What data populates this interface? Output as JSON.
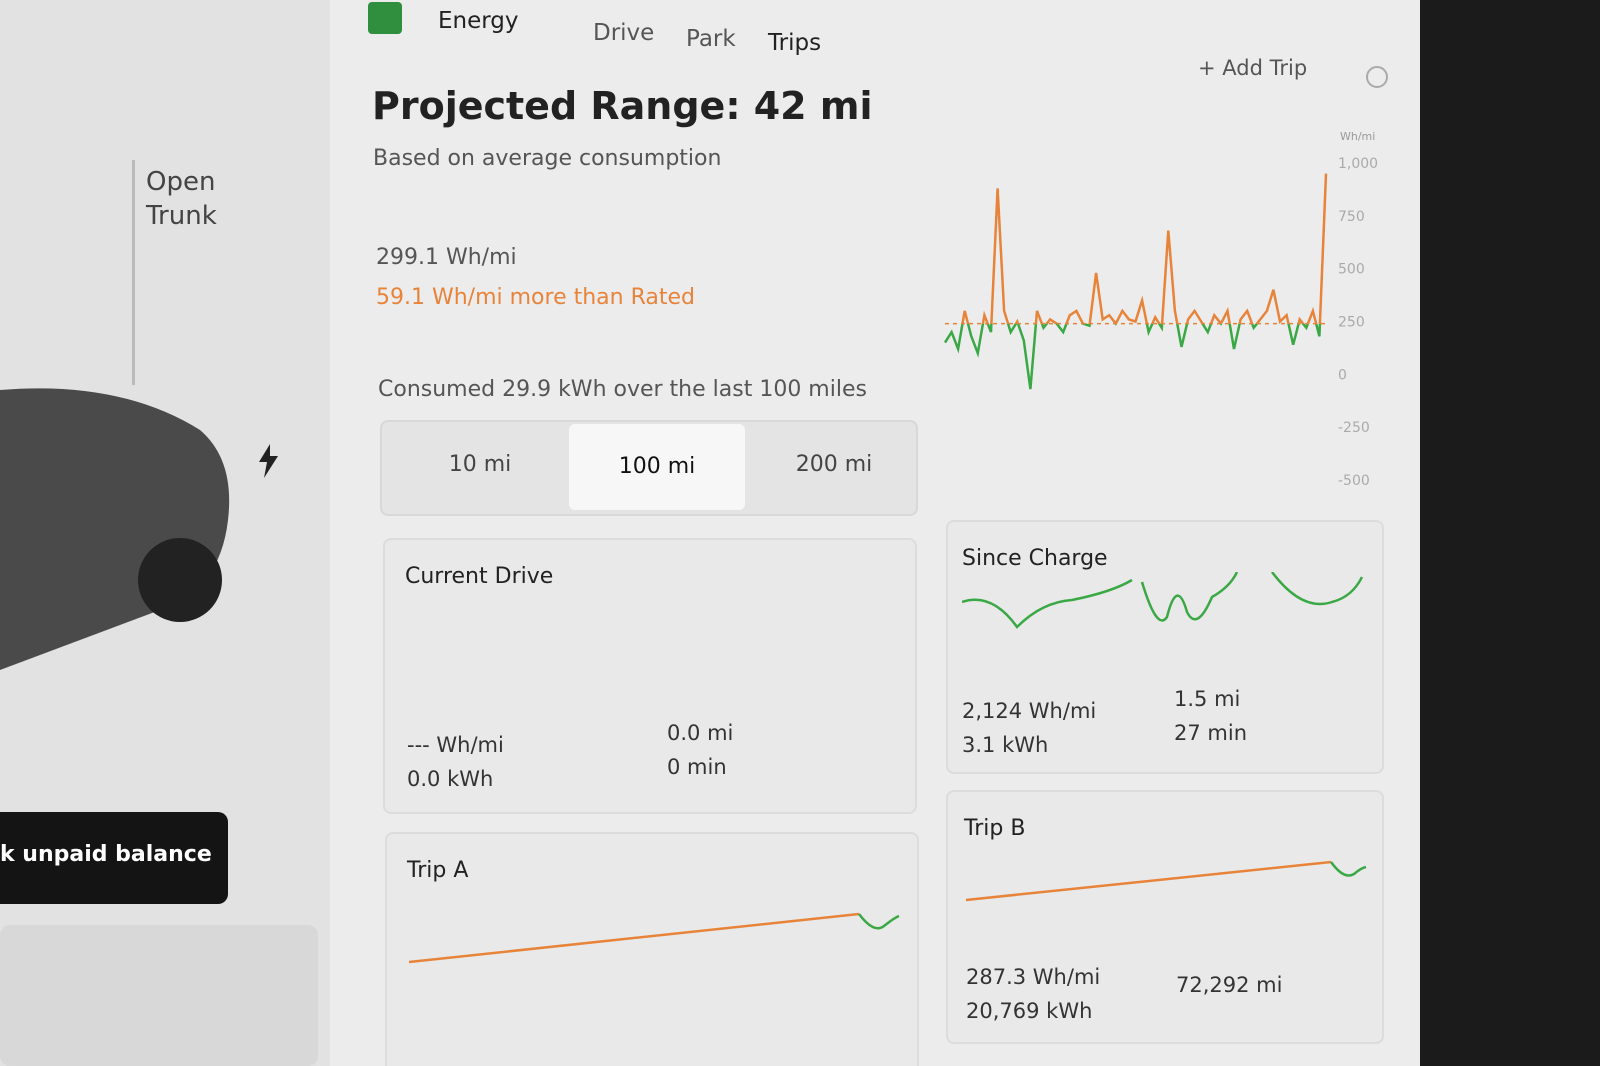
{
  "tabs": [
    "Energy",
    "Drive",
    "Park",
    "Trips"
  ],
  "add_trip": "+ Add Trip",
  "sidebar": {
    "trunk": "Open Trunk",
    "balance_banner": "k unpaid balance"
  },
  "header": {
    "title": "Projected Range: 42 mi",
    "subtitle": "Based on average consumption"
  },
  "stats": {
    "average": "299.1 Wh/mi",
    "vs_rated": "59.1 Wh/mi more than Rated",
    "consumed": "Consumed 29.9 kWh over the last 100 miles"
  },
  "range_options": [
    "10 mi",
    "100 mi",
    "200 mi"
  ],
  "chart_data": {
    "type": "line",
    "y_label": "Wh/mi",
    "ylim": [
      -500,
      1000
    ],
    "yticks": [
      {
        "value": 1000,
        "label": "1,000"
      },
      750,
      500,
      250,
      0,
      -250,
      -500
    ],
    "rated_line": 240,
    "color": "#3aa845",
    "values": [
      150,
      200,
      120,
      300,
      180,
      100,
      280,
      200,
      880,
      300,
      200,
      250,
      160,
      -70,
      300,
      220,
      260,
      240,
      200,
      280,
      300,
      240,
      230,
      480,
      260,
      280,
      240,
      300,
      260,
      250,
      350,
      200,
      270,
      220,
      680,
      300,
      130,
      260,
      300,
      250,
      200,
      280,
      240,
      300,
      120,
      260,
      300,
      220,
      260,
      300,
      400,
      250,
      280,
      140,
      260,
      220,
      300,
      180,
      950
    ]
  },
  "cards": [
    {
      "title": "Current Drive",
      "rows": [
        [
          "--- Wh/mi",
          "0.0 kWh"
        ],
        [
          "0.0 mi",
          "0 min"
        ]
      ]
    },
    {
      "title": "Since Charge",
      "rows": [
        [
          "2,124 Wh/mi",
          "3.1 kWh"
        ],
        [
          "1.5 mi",
          "27 min"
        ]
      ]
    },
    {
      "title": "Trip A",
      "rows": []
    },
    {
      "title": "Trip B",
      "rows": [
        [
          "287.3 Wh/mi",
          "20,769 kWh"
        ],
        [
          "72,292 mi"
        ]
      ]
    }
  ]
}
